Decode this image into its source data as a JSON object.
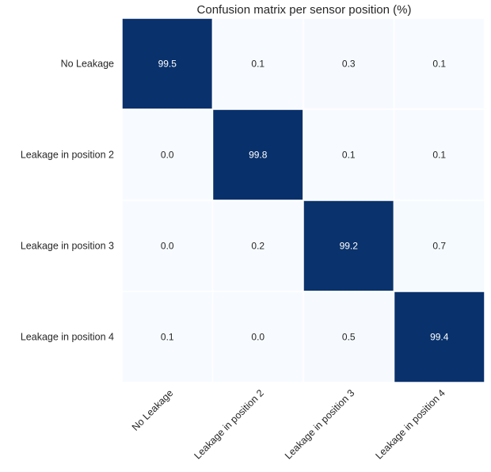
{
  "chart_data": {
    "type": "heatmap",
    "title": "Confusion matrix per sensor position (%)",
    "xlabel": "",
    "ylabel": "",
    "row_labels": [
      "No Leakage",
      "Leakage in position 2",
      "Leakage in position 3",
      "Leakage in position 4"
    ],
    "col_labels": [
      "No Leakage",
      "Leakage in position 2",
      "Leakage in position 3",
      "Leakage in position 4"
    ],
    "values": [
      [
        99.5,
        0.1,
        0.3,
        0.1
      ],
      [
        0.0,
        99.8,
        0.1,
        0.1
      ],
      [
        0.0,
        0.2,
        99.2,
        0.7
      ],
      [
        0.1,
        0.0,
        0.5,
        99.4
      ]
    ],
    "value_format": "1 decimal",
    "colormap": {
      "low": "#f7fbff",
      "high": "#08306b"
    },
    "value_range": [
      0,
      100
    ],
    "text_colors": {
      "on_dark": "#ffffff",
      "on_light": "#262626"
    },
    "colorbar": false,
    "grid": false,
    "cell_separator_color": "#ffffff"
  }
}
